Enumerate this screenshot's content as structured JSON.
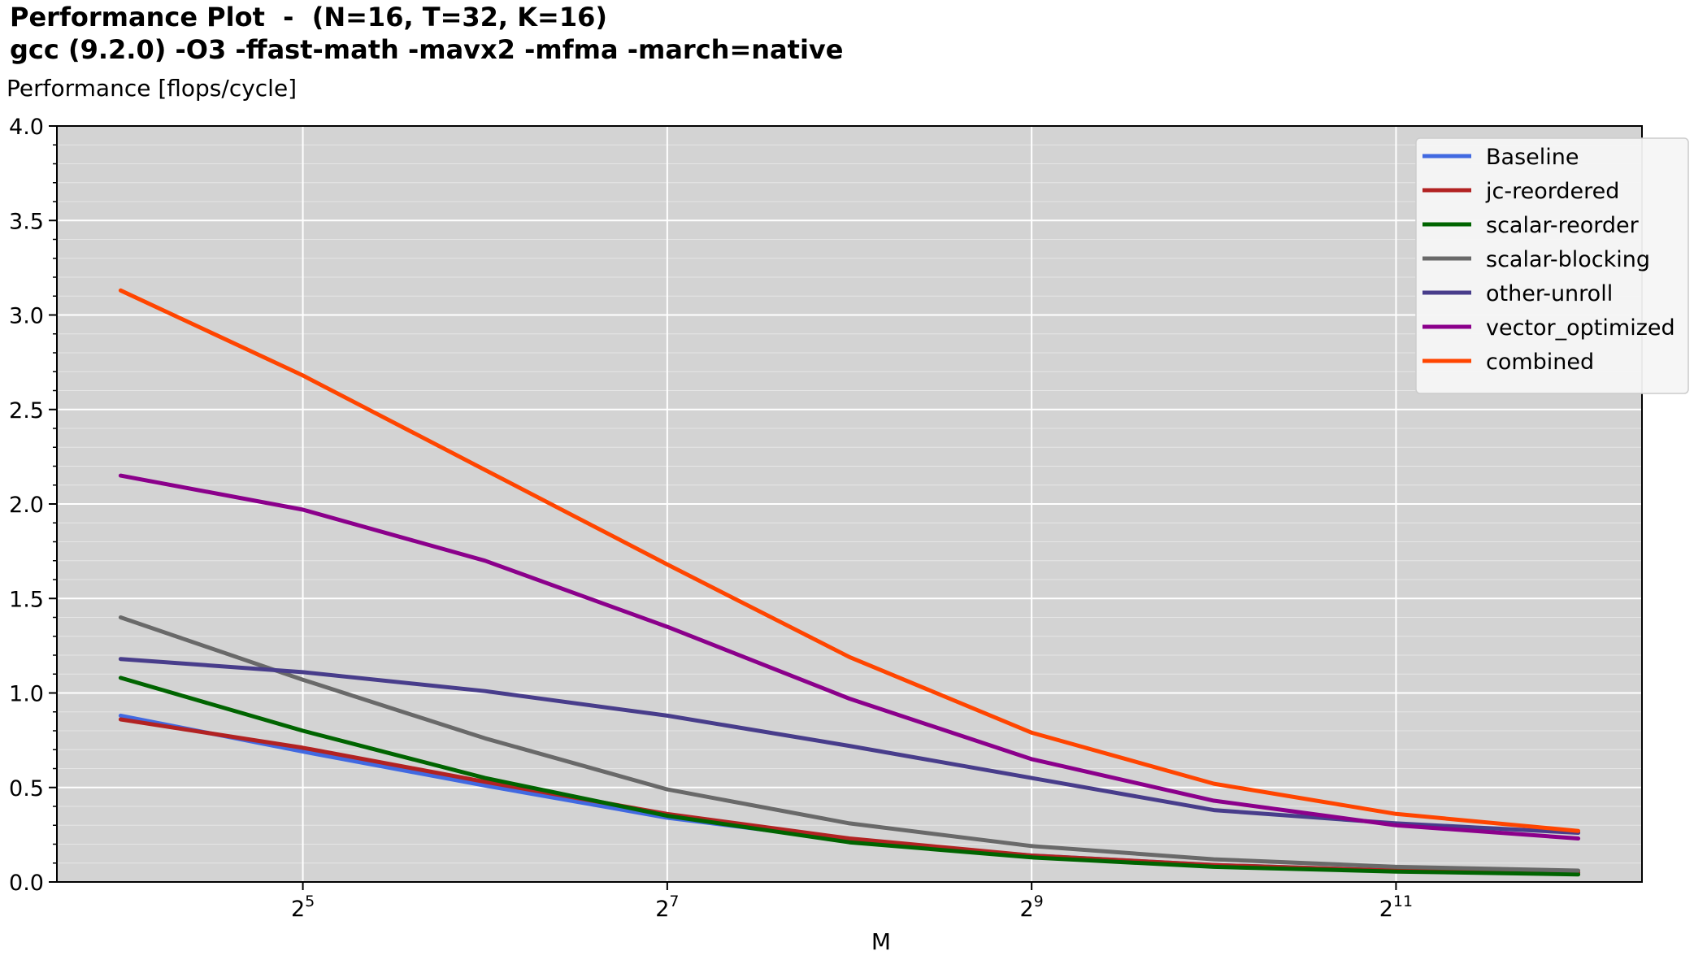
{
  "chart_data": {
    "type": "line",
    "title": "Performance Plot  -  (N=16, T=32, K=16)",
    "subtitle": "gcc (9.2.0) -O3 -ffast-math -mavx2 -mfma -march=native",
    "xlabel": "M",
    "ylabel": "Performance [flops/cycle]",
    "xscale": "log2",
    "x": [
      16,
      32,
      64,
      128,
      256,
      512,
      1024,
      2048,
      4096
    ],
    "xticks": [
      {
        "value": 32,
        "base": "2",
        "exp": "5"
      },
      {
        "value": 128,
        "base": "2",
        "exp": "7"
      },
      {
        "value": 512,
        "base": "2",
        "exp": "9"
      },
      {
        "value": 2048,
        "base": "2",
        "exp": "11"
      }
    ],
    "ylim": [
      0,
      4.0
    ],
    "yticks": [
      "0.0",
      "0.5",
      "1.0",
      "1.5",
      "2.0",
      "2.5",
      "3.0",
      "3.5",
      "4.0"
    ],
    "grid": true,
    "legend_position": "top-right",
    "series": [
      {
        "name": "Baseline",
        "color": "#4169e1",
        "values": [
          0.88,
          0.69,
          0.51,
          0.34,
          0.22,
          0.14,
          0.09,
          0.06,
          0.05
        ]
      },
      {
        "name": "jc-reordered",
        "color": "#b22222",
        "values": [
          0.86,
          0.71,
          0.53,
          0.36,
          0.23,
          0.14,
          0.09,
          0.06,
          0.05
        ]
      },
      {
        "name": "scalar-reorder",
        "color": "#006400",
        "values": [
          1.08,
          0.8,
          0.55,
          0.35,
          0.21,
          0.13,
          0.08,
          0.055,
          0.04
        ]
      },
      {
        "name": "scalar-blocking",
        "color": "#696969",
        "values": [
          1.4,
          1.07,
          0.76,
          0.49,
          0.31,
          0.19,
          0.12,
          0.08,
          0.06
        ]
      },
      {
        "name": "other-unroll",
        "color": "#483d8b",
        "values": [
          1.18,
          1.11,
          1.01,
          0.88,
          0.72,
          0.55,
          0.38,
          0.31,
          0.26
        ]
      },
      {
        "name": "vector_optimized",
        "color": "#8b008b",
        "values": [
          2.15,
          1.97,
          1.7,
          1.35,
          0.97,
          0.65,
          0.43,
          0.3,
          0.23
        ]
      },
      {
        "name": "combined",
        "color": "#ff4500",
        "values": [
          3.13,
          2.68,
          2.18,
          1.68,
          1.19,
          0.79,
          0.52,
          0.36,
          0.27
        ]
      }
    ]
  }
}
